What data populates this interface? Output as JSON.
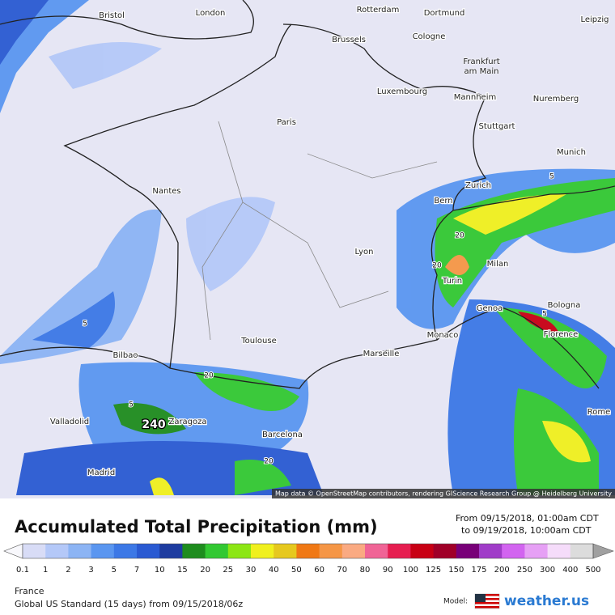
{
  "map": {
    "cities": [
      "Bristol",
      "London",
      "Rotterdam",
      "Dortmund",
      "Leipzig",
      "Brussels",
      "Cologne",
      "Frankfurt am Main",
      "Luxembourg",
      "Mannheim",
      "Nuremberg",
      "Paris",
      "Stuttgart",
      "Munich",
      "Nantes",
      "Zurich",
      "Bern",
      "Lyon",
      "Milan",
      "Turin",
      "Genoa",
      "Bologna",
      "Monaco",
      "Florence",
      "Toulouse",
      "Marseille",
      "Bilbao",
      "Rome",
      "Valladolid",
      "Zaragoza",
      "Barcelona",
      "Madrid"
    ],
    "max_value": "240",
    "contour_labels": [
      "5",
      "20",
      "5",
      "20",
      "5",
      "20",
      "5",
      "20"
    ],
    "attribution": "Map data © OpenStreetMap contributors, rendering GIScience Research Group @ Heidelberg University"
  },
  "header": {
    "title": "Accumulated Total Precipitation (mm)",
    "from": "From 09/15/2018, 01:00am CDT",
    "to": "to 09/19/2018, 10:00am CDT"
  },
  "legend": {
    "ticks": [
      0.1,
      1,
      2,
      3,
      5,
      7,
      10,
      15,
      20,
      25,
      30,
      40,
      50,
      60,
      70,
      80,
      90,
      100,
      125,
      150,
      175,
      200,
      250,
      300,
      400,
      500
    ],
    "colors": [
      "#f8f8fc",
      "#d8dcf6",
      "#b4c8f8",
      "#8cb4f4",
      "#5a96f0",
      "#3c78e6",
      "#2a5ad2",
      "#1e3ca0",
      "#1e8c1e",
      "#32c832",
      "#8ce614",
      "#f0f01e",
      "#e6c81e",
      "#f07814",
      "#f59646",
      "#faaa82",
      "#f06496",
      "#e61e50",
      "#c80014",
      "#a00028",
      "#780078",
      "#a03cc8",
      "#d264f0",
      "#e6a0f5",
      "#f5dcfa",
      "#dcdcdc",
      "#a0a0a0"
    ]
  },
  "footer": {
    "region": "France",
    "model_run": "Global US Standard (15 days) from 09/15/2018/06z",
    "model_label": "Model:",
    "brand": "weather.us"
  }
}
